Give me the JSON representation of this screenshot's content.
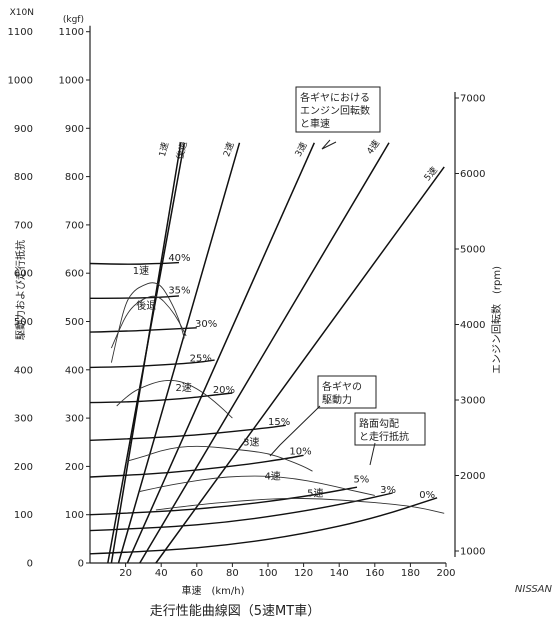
{
  "chart_data": {
    "type": "line",
    "title": "走行性能曲線図（5速MT車）",
    "source_credit": "NISSAN",
    "xlabel": "車速　(km/h)",
    "ylabel_left": "駆動力および走行抵抗",
    "ylabel_right": "エンジン回転数　(rpm)",
    "y_unit_N": "X10N",
    "y_unit_kgf": "(kgf)",
    "xlim": [
      0,
      200
    ],
    "ylim": [
      0,
      1100
    ],
    "right_ylim": [
      1000,
      7000
    ],
    "x_ticks": [
      "20",
      "40",
      "60",
      "80",
      "100",
      "120",
      "140",
      "160",
      "180",
      "200"
    ],
    "y_ticks_N": [
      "0",
      "100",
      "200",
      "300",
      "400",
      "500",
      "600",
      "700",
      "800",
      "900",
      "1000",
      "1100"
    ],
    "y_ticks_kgf": [
      "0",
      "100",
      "200",
      "300",
      "400",
      "500",
      "600",
      "700",
      "800",
      "900",
      "1000",
      "1100"
    ],
    "right_ticks": [
      "1000",
      "2000",
      "3000",
      "4000",
      "5000",
      "6000",
      "7000"
    ],
    "annotations": {
      "rpm_box": "各ギヤにおける\nエンジン回転数\nと車速",
      "drive_box": "各ギヤの\n駆動力",
      "resist_box": "路面勾配\nと走行抵抗"
    },
    "rpm_series": [
      {
        "name": "1速",
        "points": [
          [
            12,
            0
          ],
          [
            51,
            870
          ]
        ]
      },
      {
        "name": "後退",
        "points": [
          [
            10,
            0
          ],
          [
            53,
            870
          ]
        ]
      },
      {
        "name": "2速",
        "points": [
          [
            16,
            0
          ],
          [
            84,
            870
          ]
        ]
      },
      {
        "name": "3速",
        "points": [
          [
            21,
            0
          ],
          [
            126,
            870
          ]
        ]
      },
      {
        "name": "4速",
        "points": [
          [
            28,
            0
          ],
          [
            168,
            870
          ]
        ]
      },
      {
        "name": "5速",
        "points": [
          [
            37,
            0
          ],
          [
            199,
            820
          ]
        ]
      }
    ],
    "drive_series": [
      {
        "name": "1速",
        "points": [
          [
            12,
            415
          ],
          [
            15,
            465
          ],
          [
            20,
            540
          ],
          [
            25,
            565
          ],
          [
            30,
            575
          ],
          [
            35,
            582
          ],
          [
            40,
            575
          ],
          [
            45,
            545
          ],
          [
            50,
            505
          ],
          [
            53,
            465
          ]
        ]
      },
      {
        "name": "後退",
        "points": [
          [
            12,
            445
          ],
          [
            16,
            480
          ],
          [
            22,
            525
          ],
          [
            30,
            548
          ],
          [
            38,
            555
          ],
          [
            45,
            528
          ],
          [
            50,
            500
          ],
          [
            54,
            470
          ]
        ]
      },
      {
        "name": "2速",
        "points": [
          [
            15,
            325
          ],
          [
            22,
            350
          ],
          [
            30,
            365
          ],
          [
            40,
            378
          ],
          [
            50,
            378
          ],
          [
            60,
            362
          ],
          [
            70,
            335
          ],
          [
            80,
            300
          ]
        ]
      },
      {
        "name": "3速",
        "points": [
          [
            20,
            210
          ],
          [
            30,
            220
          ],
          [
            40,
            233
          ],
          [
            50,
            240
          ],
          [
            60,
            242
          ],
          [
            70,
            240
          ],
          [
            80,
            236
          ],
          [
            90,
            232
          ],
          [
            100,
            227
          ],
          [
            110,
            215
          ],
          [
            120,
            200
          ],
          [
            125,
            190
          ]
        ]
      },
      {
        "name": "4速",
        "points": [
          [
            28,
            148
          ],
          [
            40,
            158
          ],
          [
            55,
            168
          ],
          [
            70,
            176
          ],
          [
            85,
            180
          ],
          [
            100,
            180
          ],
          [
            115,
            175
          ],
          [
            130,
            165
          ],
          [
            145,
            152
          ],
          [
            160,
            140
          ]
        ]
      },
      {
        "name": "5速",
        "points": [
          [
            37,
            110
          ],
          [
            55,
            118
          ],
          [
            70,
            124
          ],
          [
            90,
            130
          ],
          [
            110,
            134
          ],
          [
            130,
            133
          ],
          [
            150,
            128
          ],
          [
            170,
            122
          ],
          [
            185,
            115
          ],
          [
            199,
            103
          ]
        ]
      }
    ],
    "resistance_series": [
      {
        "name": "40%",
        "points": [
          [
            0,
            620
          ],
          [
            20,
            618
          ],
          [
            40,
            620
          ],
          [
            50,
            622
          ]
        ]
      },
      {
        "name": "35%",
        "points": [
          [
            0,
            548
          ],
          [
            20,
            548
          ],
          [
            40,
            550
          ],
          [
            50,
            553
          ]
        ]
      },
      {
        "name": "30%",
        "points": [
          [
            0,
            478
          ],
          [
            20,
            480
          ],
          [
            40,
            483
          ],
          [
            60,
            487
          ]
        ]
      },
      {
        "name": "25%",
        "points": [
          [
            0,
            405
          ],
          [
            20,
            406
          ],
          [
            40,
            410
          ],
          [
            60,
            415
          ],
          [
            70,
            420
          ]
        ]
      },
      {
        "name": "20%",
        "points": [
          [
            0,
            332
          ],
          [
            20,
            333
          ],
          [
            40,
            337
          ],
          [
            60,
            343
          ],
          [
            70,
            348
          ],
          [
            80,
            352
          ]
        ]
      },
      {
        "name": "15%",
        "points": [
          [
            0,
            254
          ],
          [
            30,
            258
          ],
          [
            60,
            265
          ],
          [
            80,
            272
          ],
          [
            100,
            280
          ],
          [
            110,
            285
          ]
        ]
      },
      {
        "name": "10%",
        "points": [
          [
            0,
            178
          ],
          [
            30,
            183
          ],
          [
            60,
            192
          ],
          [
            90,
            205
          ],
          [
            110,
            216
          ],
          [
            120,
            223
          ]
        ]
      },
      {
        "name": "5%",
        "points": [
          [
            0,
            100
          ],
          [
            40,
            106
          ],
          [
            80,
            118
          ],
          [
            120,
            137
          ],
          [
            150,
            157
          ]
        ]
      },
      {
        "name": "3%",
        "points": [
          [
            0,
            67
          ],
          [
            40,
            73
          ],
          [
            80,
            85
          ],
          [
            120,
            107
          ],
          [
            150,
            128
          ],
          [
            170,
            145
          ]
        ]
      },
      {
        "name": "0%",
        "points": [
          [
            0,
            19
          ],
          [
            40,
            25
          ],
          [
            80,
            38
          ],
          [
            120,
            60
          ],
          [
            160,
            93
          ],
          [
            195,
            135
          ]
        ]
      }
    ],
    "in_chart_labels": {
      "rpm_gears": [
        "1速",
        "後退",
        "2速",
        "3速",
        "4速",
        "5速"
      ],
      "drive_gears": [
        "1速",
        "後退",
        "2速",
        "3速",
        "4速",
        "5速"
      ],
      "grades": [
        "40%",
        "35%",
        "30%",
        "25%",
        "20%",
        "15%",
        "10%",
        "5%",
        "3%",
        "0%"
      ]
    }
  }
}
